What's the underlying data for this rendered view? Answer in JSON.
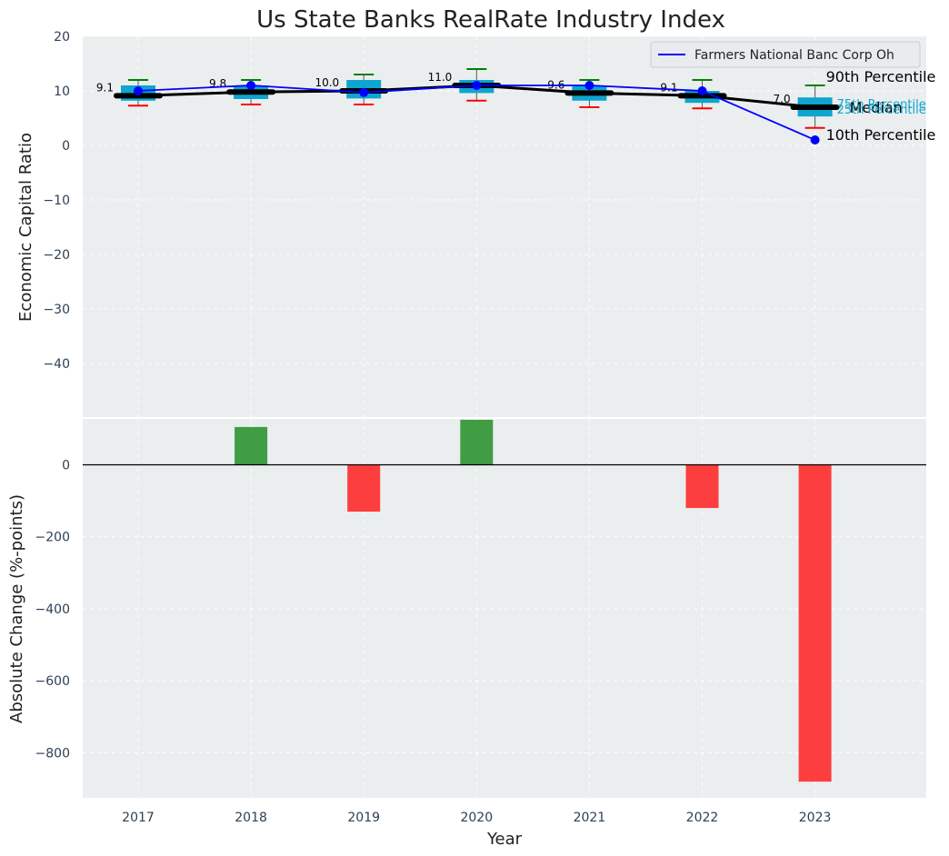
{
  "chart_data": [
    {
      "type": "box",
      "title": "Us State Banks RealRate Industry Index",
      "xlabel": "",
      "ylabel": "Economic Capital Ratio",
      "ylim": [
        -50,
        20
      ],
      "yticks": [
        20,
        10,
        0,
        -10,
        -20,
        -30,
        -40
      ],
      "categories": [
        "2017",
        "2018",
        "2019",
        "2020",
        "2021",
        "2022",
        "2023"
      ],
      "percentiles": {
        "p10": [
          7.3,
          7.5,
          7.5,
          8.2,
          7.0,
          6.8,
          3.2
        ],
        "p25": [
          8.2,
          8.5,
          8.6,
          9.6,
          8.2,
          7.8,
          5.3
        ],
        "median": [
          9.1,
          9.8,
          10.0,
          11.0,
          9.6,
          9.1,
          7.0
        ],
        "p75": [
          11.0,
          11.0,
          12.0,
          12.0,
          11.0,
          10.0,
          8.8
        ],
        "p90": [
          12.0,
          12.0,
          13.0,
          14.0,
          12.0,
          12.0,
          11.0
        ]
      },
      "median_labels": [
        "9.1",
        "9.8",
        "10.0",
        "11.0",
        "9.6",
        "9.1",
        "7.0"
      ],
      "series": [
        {
          "name": "Farmers National Banc Corp Oh",
          "values": [
            10.0,
            11.0,
            9.7,
            11.0,
            11.0,
            10.0,
            1.0
          ],
          "color": "#0000ff"
        }
      ],
      "annotations": {
        "p90": "90th Percentile",
        "p75": "75th Percentile",
        "median": "Median",
        "p25": "25th Percentile",
        "p10": "10th Percentile"
      },
      "legend_position": "top-right",
      "colors": {
        "box": "#0ea5d0",
        "median": "#000000",
        "whisker_high": "#008000",
        "whisker_low": "#ff0000"
      }
    },
    {
      "type": "bar",
      "xlabel": "Year",
      "ylabel": "Absolute Change (%-points)",
      "categories": [
        "2017",
        "2018",
        "2019",
        "2020",
        "2021",
        "2022",
        "2023"
      ],
      "values": [
        0,
        105,
        -130,
        125,
        0,
        -120,
        -880
      ],
      "ylim": [
        -925,
        130
      ],
      "yticks": [
        0,
        -200,
        -400,
        -600,
        -800
      ],
      "colors": {
        "positive": "#2e9430",
        "negative": "#ff2a2a"
      }
    }
  ],
  "legend": {
    "entries": [
      "Farmers National Banc Corp Oh"
    ]
  }
}
